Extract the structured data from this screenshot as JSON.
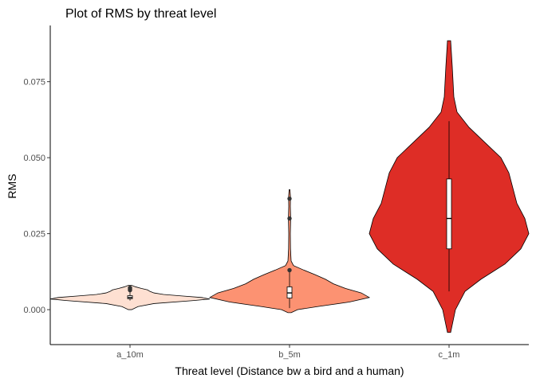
{
  "chart_data": {
    "type": "violin",
    "title": "Plot of RMS  by threat level",
    "xlabel": "Threat level (Distance bw a bird and a human)",
    "ylabel": "RMS",
    "categories": [
      "a_10m",
      "b_5m",
      "c_1m"
    ],
    "ylim": [
      -0.0115,
      0.0935
    ],
    "yticks": [
      0.0,
      0.025,
      0.05,
      0.075
    ],
    "ytick_labels": [
      "0.000",
      "0.025",
      "0.050",
      "0.075"
    ],
    "grid": false,
    "legend": "none",
    "colors": [
      "#fee0d2",
      "#fc9272",
      "#de2d26"
    ],
    "groups": [
      {
        "category": "a_10m",
        "color": "#fee0d2",
        "density": [
          [
            0.0,
            0.02
          ],
          [
            0.001,
            0.1
          ],
          [
            0.002,
            0.3
          ],
          [
            0.003,
            0.8
          ],
          [
            0.0035,
            1.0
          ],
          [
            0.004,
            0.9
          ],
          [
            0.0045,
            0.65
          ],
          [
            0.005,
            0.42
          ],
          [
            0.0055,
            0.3
          ],
          [
            0.006,
            0.25
          ],
          [
            0.0065,
            0.22
          ],
          [
            0.007,
            0.14
          ],
          [
            0.0075,
            0.07
          ],
          [
            0.008,
            0.02
          ]
        ],
        "box": {
          "min": 0.003,
          "q1": 0.0036,
          "median": 0.004,
          "q3": 0.0046,
          "max": 0.0058
        },
        "outliers": [
          0.0068,
          0.0072,
          0.0064
        ]
      },
      {
        "category": "b_5m",
        "color": "#fc9272",
        "density": [
          [
            -0.001,
            0.02
          ],
          [
            0.0,
            0.1
          ],
          [
            0.001,
            0.35
          ],
          [
            0.0025,
            0.75
          ],
          [
            0.004,
            1.0
          ],
          [
            0.0055,
            0.9
          ],
          [
            0.007,
            0.7
          ],
          [
            0.0085,
            0.55
          ],
          [
            0.01,
            0.45
          ],
          [
            0.0115,
            0.32
          ],
          [
            0.013,
            0.18
          ],
          [
            0.0145,
            0.05
          ],
          [
            0.016,
            0.02
          ],
          [
            0.02,
            0.012
          ],
          [
            0.025,
            0.01
          ],
          [
            0.03,
            0.014
          ],
          [
            0.034,
            0.01
          ],
          [
            0.037,
            0.012
          ],
          [
            0.0395,
            0.005
          ]
        ],
        "box": {
          "min": 0.0005,
          "q1": 0.0038,
          "median": 0.0055,
          "q3": 0.0075,
          "max": 0.0125
        },
        "outliers": [
          0.013,
          0.03,
          0.0365
        ]
      },
      {
        "category": "c_1m",
        "color": "#de2d26",
        "density": [
          [
            -0.0075,
            0.02
          ],
          [
            0.0,
            0.08
          ],
          [
            0.006,
            0.2
          ],
          [
            0.01,
            0.4
          ],
          [
            0.015,
            0.7
          ],
          [
            0.02,
            0.9
          ],
          [
            0.025,
            1.0
          ],
          [
            0.03,
            0.95
          ],
          [
            0.035,
            0.85
          ],
          [
            0.04,
            0.8
          ],
          [
            0.045,
            0.75
          ],
          [
            0.05,
            0.65
          ],
          [
            0.055,
            0.45
          ],
          [
            0.06,
            0.25
          ],
          [
            0.065,
            0.1
          ],
          [
            0.07,
            0.06
          ],
          [
            0.08,
            0.04
          ],
          [
            0.0885,
            0.02
          ]
        ],
        "box": {
          "min": 0.006,
          "q1": 0.02,
          "median": 0.03,
          "q3": 0.043,
          "max": 0.062
        },
        "outliers": []
      }
    ]
  }
}
